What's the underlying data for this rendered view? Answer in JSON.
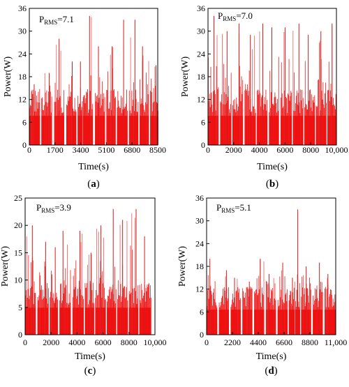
{
  "chart_data": [
    {
      "type": "bar",
      "panel_label": "(a)",
      "annotation": {
        "main": "P",
        "sub": "RMS",
        "value": "=7.1"
      },
      "xlabel": "Time(s)",
      "ylabel": "Power(W)",
      "xlim": [
        0,
        8500
      ],
      "ylim": [
        0,
        36
      ],
      "xticks": [
        0,
        1700,
        3400,
        5100,
        6800,
        8500
      ],
      "xtick_labels": [
        "0",
        "1700",
        "3400",
        "5100",
        "6800",
        "8500"
      ],
      "yticks": [
        0,
        6,
        12,
        18,
        24,
        30,
        36
      ],
      "ytick_labels": [
        "0",
        "6",
        "12",
        "18",
        "24",
        "30",
        "36"
      ],
      "bursts": [
        {
          "start": 0,
          "end": 700,
          "peak": 16
        },
        {
          "start": 800,
          "end": 1500,
          "peak": 19
        },
        {
          "start": 1650,
          "end": 2300,
          "peak": 28
        },
        {
          "start": 2450,
          "end": 3100,
          "peak": 22
        },
        {
          "start": 3200,
          "end": 3500,
          "peak": 22
        },
        {
          "start": 3550,
          "end": 4200,
          "peak": 34
        },
        {
          "start": 4350,
          "end": 5000,
          "peak": 26
        },
        {
          "start": 5100,
          "end": 5700,
          "peak": 26
        },
        {
          "start": 5800,
          "end": 6500,
          "peak": 33
        },
        {
          "start": 6600,
          "end": 7200,
          "peak": 33
        },
        {
          "start": 7300,
          "end": 7900,
          "peak": 26
        },
        {
          "start": 8000,
          "end": 8500,
          "peak": 21
        }
      ],
      "base_level": 14
    },
    {
      "type": "bar",
      "panel_label": "(b)",
      "annotation": {
        "main": "P",
        "sub": "RMS",
        "value": "=7.0"
      },
      "xlabel": "Time(s)",
      "ylabel": "Power(W)",
      "xlim": [
        0,
        10000
      ],
      "ylim": [
        0,
        36
      ],
      "xticks": [
        0,
        2000,
        4000,
        6000,
        8000,
        10000
      ],
      "xtick_labels": [
        "0",
        "2000",
        "4000",
        "6000",
        "8000",
        "10,000"
      ],
      "yticks": [
        0,
        6,
        12,
        18,
        24,
        30,
        36
      ],
      "ytick_labels": [
        "0",
        "6",
        "12",
        "18",
        "24",
        "30",
        "36"
      ],
      "bursts": [
        {
          "start": 0,
          "end": 800,
          "peak": 34
        },
        {
          "start": 950,
          "end": 1800,
          "peak": 30
        },
        {
          "start": 1900,
          "end": 2700,
          "peak": 32
        },
        {
          "start": 2850,
          "end": 3700,
          "peak": 29
        },
        {
          "start": 3800,
          "end": 4600,
          "peak": 32
        },
        {
          "start": 4750,
          "end": 5500,
          "peak": 31
        },
        {
          "start": 5650,
          "end": 6500,
          "peak": 31
        },
        {
          "start": 6600,
          "end": 7400,
          "peak": 32
        },
        {
          "start": 7500,
          "end": 8300,
          "peak": 29
        },
        {
          "start": 8400,
          "end": 9200,
          "peak": 30
        },
        {
          "start": 9300,
          "end": 10000,
          "peak": 32
        }
      ],
      "base_level": 14
    },
    {
      "type": "bar",
      "panel_label": "(c)",
      "annotation": {
        "main": "P",
        "sub": "RMS",
        "value": "=3.9"
      },
      "xlabel": "Time(s)",
      "ylabel": "Power(W)",
      "xlim": [
        0,
        10000
      ],
      "ylim": [
        0,
        25
      ],
      "xticks": [
        0,
        2000,
        4000,
        6000,
        8000,
        10000
      ],
      "xtick_labels": [
        "0",
        "2000",
        "4000",
        "6000",
        "8000",
        "10,000"
      ],
      "yticks": [
        0,
        5,
        10,
        15,
        20,
        25
      ],
      "ytick_labels": [
        "0",
        "5",
        "10",
        "15",
        "20",
        "25"
      ],
      "bursts": [
        {
          "start": 0,
          "end": 800,
          "peak": 20
        },
        {
          "start": 950,
          "end": 1800,
          "peak": 17
        },
        {
          "start": 1900,
          "end": 2500,
          "peak": 16
        },
        {
          "start": 2650,
          "end": 3500,
          "peak": 19
        },
        {
          "start": 3650,
          "end": 4500,
          "peak": 19
        },
        {
          "start": 4600,
          "end": 5300,
          "peak": 15
        },
        {
          "start": 5400,
          "end": 6200,
          "peak": 20
        },
        {
          "start": 6300,
          "end": 7000,
          "peak": 23
        },
        {
          "start": 7100,
          "end": 7900,
          "peak": 21
        },
        {
          "start": 8000,
          "end": 8700,
          "peak": 23
        },
        {
          "start": 8800,
          "end": 9700,
          "peak": 18
        }
      ],
      "base_level": 9
    },
    {
      "type": "bar",
      "panel_label": "(d)",
      "annotation": {
        "main": "P",
        "sub": "RMS",
        "value": "=5.1"
      },
      "xlabel": "Time(s)",
      "ylabel": "Power(W)",
      "xlim": [
        0,
        11000
      ],
      "ylim": [
        0,
        36
      ],
      "xticks": [
        0,
        2200,
        4400,
        6600,
        8800,
        11000
      ],
      "xtick_labels": [
        "0",
        "2200",
        "4400",
        "6600",
        "8800",
        "11,000"
      ],
      "yticks": [
        0,
        6,
        12,
        18,
        24,
        30,
        36
      ],
      "ytick_labels": [
        "0",
        "6",
        "12",
        "18",
        "24",
        "30",
        "36"
      ],
      "bursts": [
        {
          "start": 0,
          "end": 900,
          "peak": 20
        },
        {
          "start": 1050,
          "end": 1900,
          "peak": 17
        },
        {
          "start": 2050,
          "end": 2900,
          "peak": 15
        },
        {
          "start": 3050,
          "end": 3900,
          "peak": 14
        },
        {
          "start": 4050,
          "end": 4900,
          "peak": 20
        },
        {
          "start": 5050,
          "end": 5900,
          "peak": 16
        },
        {
          "start": 6050,
          "end": 6900,
          "peak": 19
        },
        {
          "start": 7000,
          "end": 7500,
          "peak": 15
        },
        {
          "start": 7550,
          "end": 7950,
          "peak": 33
        },
        {
          "start": 8050,
          "end": 8900,
          "peak": 18
        },
        {
          "start": 9050,
          "end": 9900,
          "peak": 19
        },
        {
          "start": 10050,
          "end": 11000,
          "peak": 16
        }
      ],
      "base_level": 12
    }
  ]
}
